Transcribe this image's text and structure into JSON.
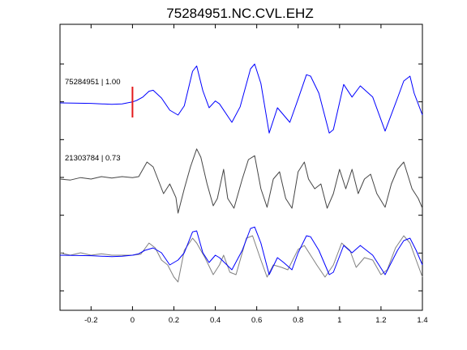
{
  "chart_data": {
    "type": "line",
    "title": "75284951.NC.CVL.EHZ",
    "xlabel": "",
    "ylabel": "",
    "xlim": [
      -0.35,
      1.4
    ],
    "x_ticks": [
      -0.2,
      0,
      0.2,
      0.4,
      0.6,
      0.8,
      1,
      1.2,
      1.4
    ],
    "x_tick_labels": [
      "-0.2",
      "0",
      "0.2",
      "0.4",
      "0.6",
      "0.8",
      "1",
      "1.2",
      "1.4"
    ],
    "y_tick_count": 7,
    "grid": false,
    "pick_marker": {
      "x": 0.0,
      "color": "#e41a1c"
    },
    "traces": [
      {
        "label": "75284951 | 1.00",
        "color": "#0000ff",
        "baseline": 0,
        "points": [
          [
            -0.35,
            0.0
          ],
          [
            -0.2,
            -0.01
          ],
          [
            -0.1,
            -0.03
          ],
          [
            -0.05,
            -0.02
          ],
          [
            0.0,
            0.02
          ],
          [
            0.02,
            0.05
          ],
          [
            0.05,
            0.12
          ],
          [
            0.08,
            0.24
          ],
          [
            0.1,
            0.26
          ],
          [
            0.14,
            0.1
          ],
          [
            0.18,
            -0.15
          ],
          [
            0.22,
            -0.25
          ],
          [
            0.25,
            -0.06
          ],
          [
            0.29,
            0.65
          ],
          [
            0.31,
            0.76
          ],
          [
            0.34,
            0.25
          ],
          [
            0.37,
            -0.1
          ],
          [
            0.4,
            0.04
          ],
          [
            0.42,
            -0.02
          ],
          [
            0.48,
            -0.4
          ],
          [
            0.52,
            -0.08
          ],
          [
            0.57,
            0.7
          ],
          [
            0.59,
            0.8
          ],
          [
            0.62,
            0.4
          ],
          [
            0.66,
            -0.62
          ],
          [
            0.7,
            -0.1
          ],
          [
            0.72,
            -0.2
          ],
          [
            0.76,
            -0.4
          ],
          [
            0.8,
            0.08
          ],
          [
            0.84,
            0.58
          ],
          [
            0.86,
            0.55
          ],
          [
            0.9,
            0.2
          ],
          [
            0.95,
            -0.62
          ],
          [
            0.97,
            -0.55
          ],
          [
            1.02,
            0.38
          ],
          [
            1.06,
            0.12
          ],
          [
            1.1,
            0.35
          ],
          [
            1.16,
            0.12
          ],
          [
            1.22,
            -0.58
          ],
          [
            1.28,
            0.1
          ],
          [
            1.31,
            0.45
          ],
          [
            1.34,
            0.55
          ],
          [
            1.36,
            0.2
          ],
          [
            1.4,
            -0.25
          ]
        ]
      },
      {
        "label": "21303784 | 0.73",
        "color": "#454545",
        "baseline": -1,
        "points": [
          [
            -0.35,
            0.0
          ],
          [
            -0.3,
            -0.02
          ],
          [
            -0.25,
            0.03
          ],
          [
            -0.2,
            0.0
          ],
          [
            -0.15,
            0.05
          ],
          [
            -0.1,
            0.02
          ],
          [
            -0.05,
            0.05
          ],
          [
            0.0,
            0.03
          ],
          [
            0.03,
            0.05
          ],
          [
            0.07,
            0.35
          ],
          [
            0.1,
            0.25
          ],
          [
            0.15,
            -0.3
          ],
          [
            0.18,
            -0.1
          ],
          [
            0.21,
            -0.38
          ],
          [
            0.22,
            -0.7
          ],
          [
            0.25,
            -0.2
          ],
          [
            0.28,
            0.25
          ],
          [
            0.31,
            0.62
          ],
          [
            0.33,
            0.45
          ],
          [
            0.36,
            -0.1
          ],
          [
            0.39,
            -0.55
          ],
          [
            0.41,
            -0.4
          ],
          [
            0.44,
            0.2
          ],
          [
            0.46,
            -0.4
          ],
          [
            0.49,
            -0.6
          ],
          [
            0.53,
            0.0
          ],
          [
            0.56,
            0.4
          ],
          [
            0.59,
            0.48
          ],
          [
            0.62,
            -0.2
          ],
          [
            0.65,
            -0.58
          ],
          [
            0.68,
            0.0
          ],
          [
            0.71,
            0.15
          ],
          [
            0.74,
            -0.4
          ],
          [
            0.77,
            -0.6
          ],
          [
            0.8,
            0.15
          ],
          [
            0.83,
            0.35
          ],
          [
            0.85,
            0.0
          ],
          [
            0.88,
            -0.2
          ],
          [
            0.91,
            -0.1
          ],
          [
            0.94,
            -0.6
          ],
          [
            0.97,
            -0.3
          ],
          [
            1.0,
            0.2
          ],
          [
            1.03,
            -0.2
          ],
          [
            1.06,
            0.2
          ],
          [
            1.09,
            -0.3
          ],
          [
            1.12,
            0.0
          ],
          [
            1.15,
            0.1
          ],
          [
            1.18,
            -0.3
          ],
          [
            1.22,
            -0.58
          ],
          [
            1.25,
            -0.1
          ],
          [
            1.28,
            0.2
          ],
          [
            1.31,
            0.35
          ],
          [
            1.35,
            -0.2
          ],
          [
            1.38,
            -0.4
          ],
          [
            1.4,
            -0.6
          ]
        ]
      },
      {
        "label": "",
        "color": "#808080",
        "baseline": -2,
        "points": [
          [
            -0.35,
            0.05
          ],
          [
            -0.3,
            0.0
          ],
          [
            -0.25,
            0.05
          ],
          [
            -0.2,
            0.0
          ],
          [
            -0.15,
            0.03
          ],
          [
            -0.1,
            0.0
          ],
          [
            -0.05,
            0.0
          ],
          [
            0.0,
            0.0
          ],
          [
            0.04,
            0.02
          ],
          [
            0.08,
            0.25
          ],
          [
            0.11,
            0.15
          ],
          [
            0.14,
            -0.1
          ],
          [
            0.17,
            -0.2
          ],
          [
            0.2,
            -0.45
          ],
          [
            0.22,
            -0.55
          ],
          [
            0.25,
            0.1
          ],
          [
            0.29,
            0.35
          ],
          [
            0.31,
            0.25
          ],
          [
            0.35,
            -0.05
          ],
          [
            0.39,
            -0.4
          ],
          [
            0.42,
            -0.2
          ],
          [
            0.44,
            0.0
          ],
          [
            0.47,
            -0.35
          ],
          [
            0.5,
            -0.4
          ],
          [
            0.55,
            0.35
          ],
          [
            0.58,
            0.4
          ],
          [
            0.62,
            -0.1
          ],
          [
            0.65,
            -0.45
          ],
          [
            0.68,
            -0.2
          ],
          [
            0.72,
            -0.25
          ],
          [
            0.75,
            -0.3
          ],
          [
            0.8,
            0.12
          ],
          [
            0.83,
            0.2
          ],
          [
            0.86,
            0.0
          ],
          [
            0.89,
            -0.2
          ],
          [
            0.93,
            -0.45
          ],
          [
            0.97,
            -0.2
          ],
          [
            1.01,
            0.25
          ],
          [
            1.05,
            0.1
          ],
          [
            1.08,
            -0.25
          ],
          [
            1.12,
            -0.05
          ],
          [
            1.16,
            -0.1
          ],
          [
            1.2,
            -0.4
          ],
          [
            1.23,
            -0.3
          ],
          [
            1.27,
            0.15
          ],
          [
            1.31,
            0.4
          ],
          [
            1.34,
            0.25
          ],
          [
            1.37,
            -0.1
          ],
          [
            1.4,
            -0.45
          ]
        ]
      },
      {
        "label": "",
        "color": "#0000ff",
        "baseline": -2,
        "points": [
          [
            -0.35,
            0.0
          ],
          [
            -0.2,
            -0.01
          ],
          [
            -0.1,
            -0.03
          ],
          [
            -0.05,
            -0.02
          ],
          [
            0.0,
            0.0
          ],
          [
            0.03,
            0.03
          ],
          [
            0.06,
            0.1
          ],
          [
            0.1,
            0.15
          ],
          [
            0.14,
            0.05
          ],
          [
            0.18,
            -0.2
          ],
          [
            0.22,
            -0.1
          ],
          [
            0.25,
            0.05
          ],
          [
            0.29,
            0.48
          ],
          [
            0.31,
            0.5
          ],
          [
            0.34,
            0.05
          ],
          [
            0.37,
            -0.15
          ],
          [
            0.4,
            0.0
          ],
          [
            0.42,
            -0.05
          ],
          [
            0.48,
            -0.3
          ],
          [
            0.53,
            0.1
          ],
          [
            0.57,
            0.55
          ],
          [
            0.59,
            0.58
          ],
          [
            0.62,
            0.25
          ],
          [
            0.66,
            -0.4
          ],
          [
            0.7,
            -0.05
          ],
          [
            0.73,
            -0.15
          ],
          [
            0.77,
            -0.3
          ],
          [
            0.8,
            0.05
          ],
          [
            0.84,
            0.4
          ],
          [
            0.86,
            0.38
          ],
          [
            0.9,
            0.1
          ],
          [
            0.95,
            -0.4
          ],
          [
            0.97,
            -0.35
          ],
          [
            1.02,
            0.2
          ],
          [
            1.06,
            0.05
          ],
          [
            1.1,
            0.2
          ],
          [
            1.16,
            0.0
          ],
          [
            1.22,
            -0.4
          ],
          [
            1.28,
            0.1
          ],
          [
            1.31,
            0.3
          ],
          [
            1.34,
            0.35
          ],
          [
            1.37,
            0.1
          ],
          [
            1.4,
            -0.2
          ]
        ]
      }
    ]
  }
}
